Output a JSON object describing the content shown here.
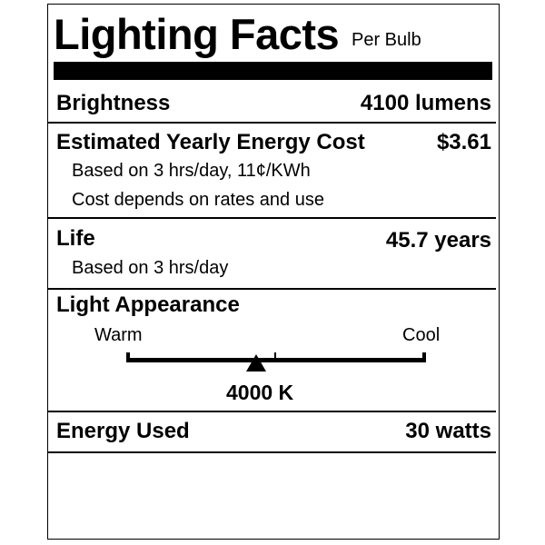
{
  "header": {
    "title": "Lighting Facts",
    "subtitle": "Per Bulb"
  },
  "brightness": {
    "label": "Brightness",
    "value": "4100 lumens"
  },
  "energy_cost": {
    "label": "Estimated Yearly Energy Cost",
    "value": "$3.61",
    "note1": "Based on 3 hrs/day, 11¢/KWh",
    "note2": "Cost depends on rates and use"
  },
  "life": {
    "label": "Life",
    "value": "45.7 years",
    "note": "Based on 3 hrs/day"
  },
  "light_appearance": {
    "label": "Light Appearance",
    "warm_label": "Warm",
    "cool_label": "Cool",
    "value": "4000 K"
  },
  "energy_used": {
    "label": "Energy Used",
    "value": "30 watts"
  }
}
